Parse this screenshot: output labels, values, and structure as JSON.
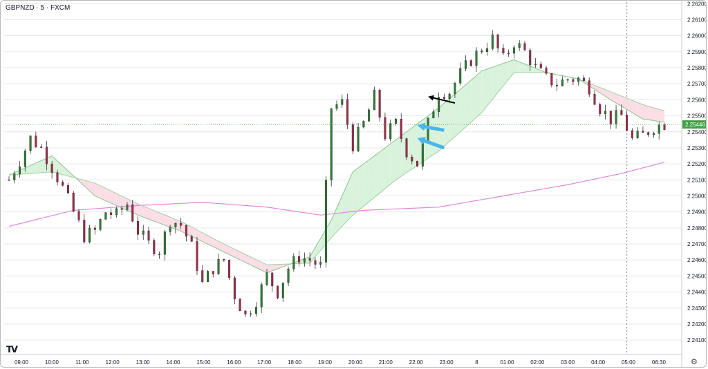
{
  "chart_header": {
    "symbol": "GBPNZD · 5 · FXCM"
  },
  "last_price_label": "2.25446",
  "logo_text": "TV",
  "settings_icon": "gear-icon",
  "colors": {
    "up": "#2e7d32",
    "down": "#a52a4a",
    "ema_fast": "#8bc48f",
    "ema_slow": "#9fd3a3",
    "cloud_bull": "#d9f2dc",
    "cloud_bear": "#fbdde6",
    "ma_long": "#dd88dd",
    "arrow_blue": "#4db6e8",
    "arrow_black": "#000000",
    "price_tag": "#43a047"
  },
  "chart_data": {
    "type": "candlestick",
    "title": "GBPNZD · 5 · FXCM",
    "ylim": [
      2.2401,
      2.2621
    ],
    "y_ticks": [
      "2.26200",
      "2.26100",
      "2.26000",
      "2.25900",
      "2.25800",
      "2.25700",
      "2.25600",
      "2.25500",
      "2.25400",
      "2.25300",
      "2.25200",
      "2.25100",
      "2.25000",
      "2.24900",
      "2.24800",
      "2.24700",
      "2.24600",
      "2.24500",
      "2.24400",
      "2.24300",
      "2.24200",
      "2.24100"
    ],
    "x_ticks": [
      "09:00",
      "10:00",
      "11:00",
      "12:00",
      "13:00",
      "14:00",
      "15:00",
      "16:00",
      "17:00",
      "18:00",
      "19:00",
      "20:00",
      "21:00",
      "22:00",
      "23:00",
      "8",
      "01:00",
      "02:00",
      "03:00",
      "04:00",
      "05:00",
      "06:30"
    ],
    "close_path": [
      [
        0,
        2.251
      ],
      [
        2,
        2.2522
      ],
      [
        4,
        2.2536
      ],
      [
        6,
        2.253
      ],
      [
        8,
        2.2518
      ],
      [
        10,
        2.2505
      ],
      [
        12,
        2.249
      ],
      [
        14,
        2.2475
      ],
      [
        16,
        2.2478
      ],
      [
        18,
        2.249
      ],
      [
        20,
        2.2488
      ],
      [
        22,
        2.2495
      ],
      [
        24,
        2.2478
      ],
      [
        26,
        2.247
      ],
      [
        28,
        2.2466
      ],
      [
        30,
        2.2485
      ],
      [
        32,
        2.2482
      ],
      [
        34,
        2.2468
      ],
      [
        36,
        2.2445
      ],
      [
        38,
        2.2455
      ],
      [
        40,
        2.246
      ],
      [
        42,
        2.2438
      ],
      [
        44,
        2.2425
      ],
      [
        46,
        2.2435
      ],
      [
        48,
        2.245
      ],
      [
        50,
        2.244
      ],
      [
        52,
        2.2455
      ],
      [
        54,
        2.2462
      ],
      [
        56,
        2.246
      ],
      [
        58,
        2.2456
      ],
      [
        60,
        2.2555
      ],
      [
        62,
        2.2558
      ],
      [
        64,
        2.2532
      ],
      [
        66,
        2.2545
      ],
      [
        68,
        2.2562
      ],
      [
        70,
        2.2538
      ],
      [
        72,
        2.2545
      ],
      [
        74,
        2.2528
      ],
      [
        76,
        2.252
      ],
      [
        78,
        2.2545
      ],
      [
        80,
        2.2565
      ],
      [
        82,
        2.2565
      ],
      [
        84,
        2.2576
      ],
      [
        86,
        2.2585
      ],
      [
        88,
        2.2592
      ],
      [
        90,
        2.2598
      ],
      [
        92,
        2.2585
      ],
      [
        94,
        2.2596
      ],
      [
        96,
        2.259
      ],
      [
        98,
        2.258
      ],
      [
        100,
        2.2573
      ],
      [
        102,
        2.257
      ],
      [
        104,
        2.2573
      ],
      [
        106,
        2.2573
      ],
      [
        108,
        2.2568
      ],
      [
        110,
        2.2555
      ],
      [
        112,
        2.2548
      ],
      [
        114,
        2.255
      ],
      [
        116,
        2.2535
      ],
      [
        118,
        2.2538
      ],
      [
        120,
        2.2543
      ],
      [
        122,
        2.2545
      ]
    ],
    "candle_count": 123,
    "ema_fast_values": [
      [
        0,
        2.2513
      ],
      [
        8,
        2.2525
      ],
      [
        16,
        2.25
      ],
      [
        24,
        2.2488
      ],
      [
        32,
        2.2478
      ],
      [
        40,
        2.2465
      ],
      [
        48,
        2.2452
      ],
      [
        56,
        2.2462
      ],
      [
        60,
        2.2485
      ],
      [
        64,
        2.2515
      ],
      [
        72,
        2.2535
      ],
      [
        80,
        2.2555
      ],
      [
        88,
        2.2578
      ],
      [
        94,
        2.2585
      ],
      [
        100,
        2.2577
      ],
      [
        106,
        2.2573
      ],
      [
        112,
        2.256
      ],
      [
        118,
        2.2548
      ],
      [
        122,
        2.2546
      ]
    ],
    "ema_slow_values": [
      [
        0,
        2.2513
      ],
      [
        8,
        2.2515
      ],
      [
        16,
        2.2508
      ],
      [
        24,
        2.2495
      ],
      [
        32,
        2.2484
      ],
      [
        40,
        2.247
      ],
      [
        48,
        2.2457
      ],
      [
        56,
        2.2458
      ],
      [
        60,
        2.2474
      ],
      [
        64,
        2.2488
      ],
      [
        72,
        2.251
      ],
      [
        80,
        2.2528
      ],
      [
        88,
        2.2552
      ],
      [
        94,
        2.2577
      ],
      [
        100,
        2.2577
      ],
      [
        106,
        2.2573
      ],
      [
        112,
        2.2565
      ],
      [
        118,
        2.2557
      ],
      [
        122,
        2.2553
      ]
    ],
    "ma_long_values": [
      [
        0,
        2.2481
      ],
      [
        12,
        2.2491
      ],
      [
        24,
        2.2494
      ],
      [
        36,
        2.2496
      ],
      [
        48,
        2.2493
      ],
      [
        58,
        2.2488
      ],
      [
        66,
        2.2491
      ],
      [
        80,
        2.2493
      ],
      [
        92,
        2.25
      ],
      [
        104,
        2.2507
      ],
      [
        114,
        2.2514
      ],
      [
        122,
        2.2521
      ]
    ],
    "last_price": 2.25446,
    "annotations": [
      {
        "type": "arrow",
        "color": "blue",
        "tip": [
          76,
          2.2544
        ],
        "tail": [
          81,
          2.2541
        ]
      },
      {
        "type": "arrow",
        "color": "blue",
        "tip": [
          76,
          2.2536
        ],
        "tail": [
          81,
          2.253
        ]
      },
      {
        "type": "arrow",
        "color": "black",
        "tip": [
          78,
          2.2562
        ],
        "tail": [
          83,
          2.2558
        ]
      }
    ],
    "session_marker_x": 115,
    "grid": true
  }
}
